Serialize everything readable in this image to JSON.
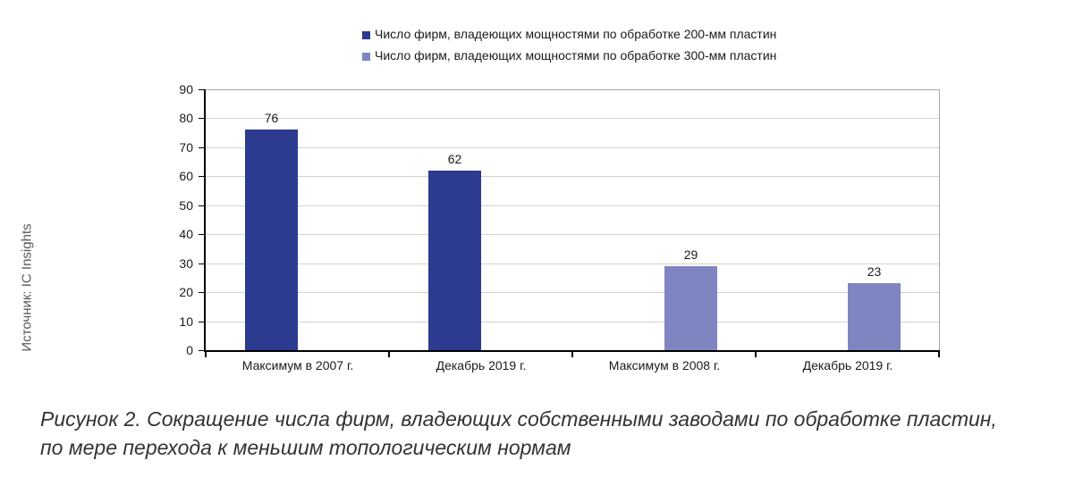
{
  "source_label": "Источник: IC Insights",
  "caption": {
    "line1": "Рисунок 2. Сокращение числа фирм, владеющих собственными заводами по обработке пластин,",
    "line2": "по мере перехода к меньшим топологическим нормам"
  },
  "chart_data": {
    "type": "bar",
    "title": "",
    "categories": [
      "Максимум в 2007 г.",
      "Декабрь 2019 г.",
      "Максимум в 2008 г.",
      "Декабрь 2019 г."
    ],
    "series": [
      {
        "name": "Число фирм, владеющих мощностями по обработке 200-мм пластин",
        "color": "#2C3A90",
        "values": [
          76,
          62,
          null,
          null
        ]
      },
      {
        "name": "Число фирм, владеющих мощностями по обработке 300-мм пластин",
        "color": "#7E85C1",
        "values": [
          null,
          null,
          29,
          23
        ]
      }
    ],
    "ylim": [
      0,
      90
    ],
    "ytick_step": 10,
    "grid": true,
    "legend_position": "top",
    "colors": {
      "axis": "#000000",
      "plot_border": "#A6A6A6",
      "gridline": "#D2D2D2",
      "label_text": "#1a1a1a"
    }
  }
}
